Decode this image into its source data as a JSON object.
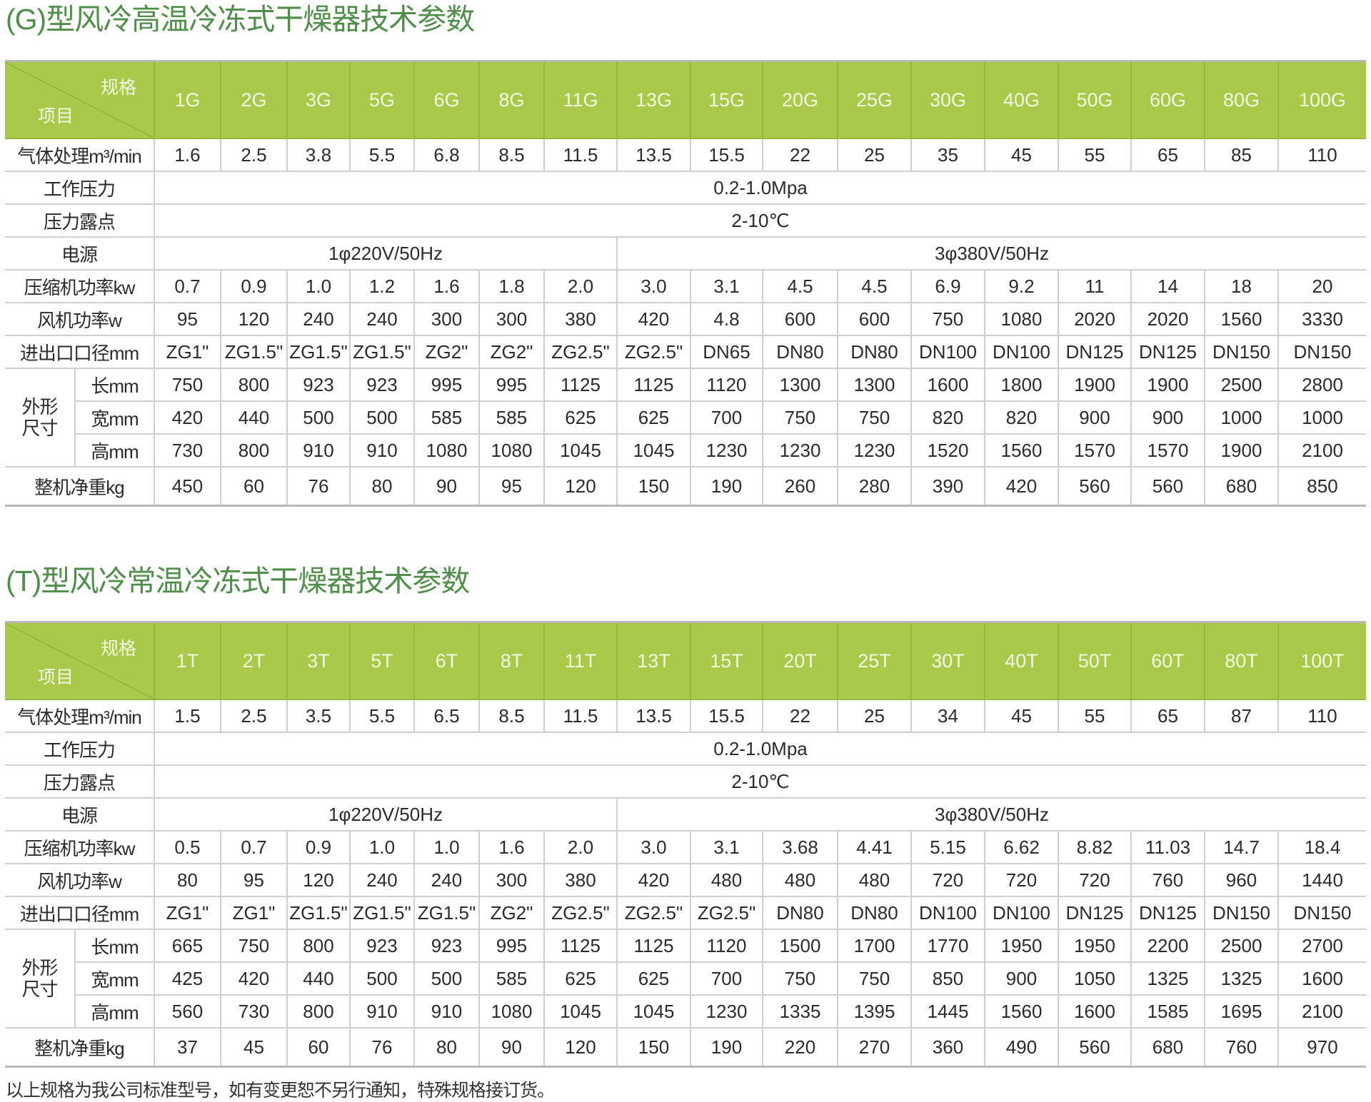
{
  "colors": {
    "title": "#4f8f4a",
    "header_bg": "#a8c94a",
    "header_text": "#f3f8e2",
    "grid": "#cfcfcf"
  },
  "tables": [
    {
      "title": "(G)型风冷高温冷冻式干燥器技术参数",
      "corner_spec": "规格",
      "corner_item": "项目",
      "models": [
        "1G",
        "2G",
        "3G",
        "5G",
        "6G",
        "8G",
        "11G",
        "13G",
        "15G",
        "20G",
        "25G",
        "30G",
        "40G",
        "50G",
        "60G",
        "80G",
        "100G"
      ],
      "flow": {
        "label": "气体处理m³/min",
        "values": [
          "1.6",
          "2.5",
          "3.8",
          "5.5",
          "6.8",
          "8.5",
          "11.5",
          "13.5",
          "15.5",
          "22",
          "25",
          "35",
          "45",
          "55",
          "65",
          "85",
          "110"
        ]
      },
      "pressure": {
        "label": "工作压力",
        "value": "0.2-1.0Mpa"
      },
      "dew_point": {
        "label": "压力露点",
        "value": "2-10℃"
      },
      "power_supply": {
        "label": "电源",
        "groups": [
          {
            "value": "1φ220V/50Hz",
            "span": 7
          },
          {
            "value": "3φ380V/50Hz",
            "span": 10
          }
        ]
      },
      "compressor": {
        "label": "压缩机功率kw",
        "values": [
          "0.7",
          "0.9",
          "1.0",
          "1.2",
          "1.6",
          "1.8",
          "2.0",
          "3.0",
          "3.1",
          "4.5",
          "4.5",
          "6.9",
          "9.2",
          "11",
          "14",
          "18",
          "20"
        ]
      },
      "fan": {
        "label": "风机功率w",
        "values": [
          "95",
          "120",
          "240",
          "240",
          "300",
          "300",
          "380",
          "420",
          "4.8",
          "600",
          "600",
          "750",
          "1080",
          "2020",
          "2020",
          "1560",
          "3330"
        ]
      },
      "port": {
        "label": "进出口口径mm",
        "values": [
          "ZG1\"",
          "ZG1.5\"",
          "ZG1.5\"",
          "ZG1.5\"",
          "ZG2\"",
          "ZG2\"",
          "ZG2.5\"",
          "ZG2.5\"",
          "DN65",
          "DN80",
          "DN80",
          "DN100",
          "DN100",
          "DN125",
          "DN125",
          "DN150",
          "DN150"
        ]
      },
      "dimensions": {
        "label": "外形尺寸",
        "length": {
          "label": "长mm",
          "values": [
            "750",
            "800",
            "923",
            "923",
            "995",
            "995",
            "1125",
            "1125",
            "1120",
            "1300",
            "1300",
            "1600",
            "1800",
            "1900",
            "1900",
            "2500",
            "2800"
          ]
        },
        "width": {
          "label": "宽mm",
          "values": [
            "420",
            "440",
            "500",
            "500",
            "585",
            "585",
            "625",
            "625",
            "700",
            "750",
            "750",
            "820",
            "820",
            "900",
            "900",
            "1000",
            "1000"
          ]
        },
        "height": {
          "label": "高mm",
          "values": [
            "730",
            "800",
            "910",
            "910",
            "1080",
            "1080",
            "1045",
            "1045",
            "1230",
            "1230",
            "1230",
            "1520",
            "1560",
            "1570",
            "1570",
            "1900",
            "2100"
          ]
        }
      },
      "weight": {
        "label": "整机净重kg",
        "values": [
          "450",
          "60",
          "76",
          "80",
          "90",
          "95",
          "120",
          "150",
          "190",
          "260",
          "280",
          "390",
          "420",
          "560",
          "560",
          "680",
          "850"
        ]
      }
    },
    {
      "title": "(T)型风冷常温冷冻式干燥器技术参数",
      "corner_spec": "规格",
      "corner_item": "项目",
      "models": [
        "1T",
        "2T",
        "3T",
        "5T",
        "6T",
        "8T",
        "11T",
        "13T",
        "15T",
        "20T",
        "25T",
        "30T",
        "40T",
        "50T",
        "60T",
        "80T",
        "100T"
      ],
      "flow": {
        "label": "气体处理m³/min",
        "values": [
          "1.5",
          "2.5",
          "3.5",
          "5.5",
          "6.5",
          "8.5",
          "11.5",
          "13.5",
          "15.5",
          "22",
          "25",
          "34",
          "45",
          "55",
          "65",
          "87",
          "110"
        ]
      },
      "pressure": {
        "label": "工作压力",
        "value": "0.2-1.0Mpa"
      },
      "dew_point": {
        "label": "压力露点",
        "value": "2-10℃"
      },
      "power_supply": {
        "label": "电源",
        "groups": [
          {
            "value": "1φ220V/50Hz",
            "span": 7
          },
          {
            "value": "3φ380V/50Hz",
            "span": 10
          }
        ]
      },
      "compressor": {
        "label": "压缩机功率kw",
        "values": [
          "0.5",
          "0.7",
          "0.9",
          "1.0",
          "1.0",
          "1.6",
          "2.0",
          "3.0",
          "3.1",
          "3.68",
          "4.41",
          "5.15",
          "6.62",
          "8.82",
          "11.03",
          "14.7",
          "18.4"
        ]
      },
      "fan": {
        "label": "风机功率w",
        "values": [
          "80",
          "95",
          "120",
          "240",
          "240",
          "300",
          "380",
          "420",
          "480",
          "480",
          "480",
          "720",
          "720",
          "720",
          "760",
          "960",
          "1440"
        ]
      },
      "port": {
        "label": "进出口口径mm",
        "values": [
          "ZG1\"",
          "ZG1\"",
          "ZG1.5\"",
          "ZG1.5\"",
          "ZG1.5\"",
          "ZG2\"",
          "ZG2.5\"",
          "ZG2.5\"",
          "ZG2.5\"",
          "DN80",
          "DN80",
          "DN100",
          "DN100",
          "DN125",
          "DN125",
          "DN150",
          "DN150"
        ]
      },
      "dimensions": {
        "label": "外形尺寸",
        "length": {
          "label": "长mm",
          "values": [
            "665",
            "750",
            "800",
            "923",
            "923",
            "995",
            "1125",
            "1125",
            "1120",
            "1500",
            "1700",
            "1770",
            "1950",
            "1950",
            "2200",
            "2500",
            "2700"
          ]
        },
        "width": {
          "label": "宽mm",
          "values": [
            "425",
            "420",
            "440",
            "500",
            "500",
            "585",
            "625",
            "625",
            "700",
            "750",
            "750",
            "850",
            "900",
            "1050",
            "1325",
            "1325",
            "1600"
          ]
        },
        "height": {
          "label": "高mm",
          "values": [
            "560",
            "730",
            "800",
            "910",
            "910",
            "1080",
            "1045",
            "1045",
            "1230",
            "1335",
            "1395",
            "1445",
            "1560",
            "1600",
            "1585",
            "1695",
            "2100"
          ]
        }
      },
      "weight": {
        "label": "整机净重kg",
        "values": [
          "37",
          "45",
          "60",
          "76",
          "80",
          "90",
          "120",
          "150",
          "190",
          "220",
          "270",
          "360",
          "490",
          "560",
          "680",
          "760",
          "970"
        ]
      }
    }
  ],
  "footnote": "以上规格为我公司标准型号，如有变更恕不另行通知，特殊规格接订货。"
}
